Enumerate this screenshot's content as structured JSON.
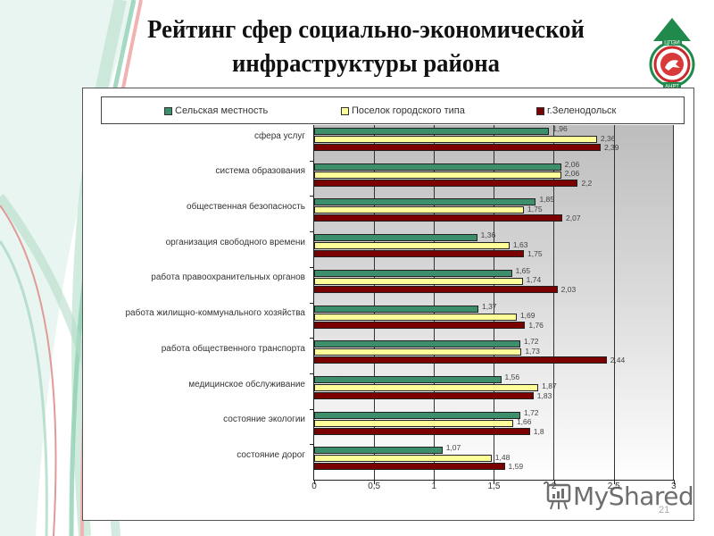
{
  "slide": {
    "title_line1": "Рейтинг сфер социально-экономической",
    "title_line2": "инфраструктуры района",
    "logo": {
      "top_text": "ЦПЭИ",
      "bottom_text": "АНРТ",
      "icon": "tatarstan-emblem-logo"
    },
    "slide_number": "21",
    "watermark": "MyShared"
  },
  "colors": {
    "rural": "#3c8f6a",
    "urban_settlement": "#ffff99",
    "zelenodolsk": "#7b0000"
  },
  "chart_data": {
    "type": "bar",
    "orientation": "horizontal",
    "title": "Рейтинг сфер социально-экономической инфраструктуры района",
    "xlabel": "",
    "ylabel": "",
    "xlim": [
      0,
      3
    ],
    "x_ticks": [
      "0",
      "0,5",
      "1",
      "1,5",
      "2",
      "2,5",
      "3"
    ],
    "grid": true,
    "legend_position": "top",
    "categories": [
      "сфера услуг",
      "система образования",
      "общественная безопасность",
      "организация свободного времени",
      "работа правоохранительных органов",
      "работа жилищно-коммунального хозяйства",
      "работа общественного транспорта",
      "медицинское обслуживание",
      "состояние экологии",
      "состояние дорог"
    ],
    "series": [
      {
        "name": "Сельская местность",
        "values": [
          1.96,
          2.06,
          1.85,
          1.36,
          1.65,
          1.37,
          1.72,
          1.56,
          1.72,
          1.07
        ],
        "labels": [
          "1,96",
          "2,06",
          "1,85",
          "1,36",
          "1,65",
          "1,37",
          "1,72",
          "1,56",
          "1,72",
          "1,07"
        ]
      },
      {
        "name": "Поселок городского типа",
        "values": [
          2.36,
          2.06,
          1.75,
          1.63,
          1.74,
          1.69,
          1.73,
          1.87,
          1.66,
          1.48
        ],
        "labels": [
          "2,36",
          "2,06",
          "1,75",
          "1,63",
          "1,74",
          "1,69",
          "1,73",
          "1,87",
          "1,66",
          "1,48"
        ]
      },
      {
        "name": "г.Зеленодольск",
        "values": [
          2.39,
          2.2,
          2.07,
          1.75,
          2.03,
          1.76,
          2.44,
          1.83,
          1.8,
          1.59
        ],
        "labels": [
          "2,39",
          "2,2",
          "2,07",
          "1,75",
          "2,03",
          "1,76",
          "2,44",
          "1,83",
          "1,8",
          "1,59"
        ]
      }
    ]
  }
}
